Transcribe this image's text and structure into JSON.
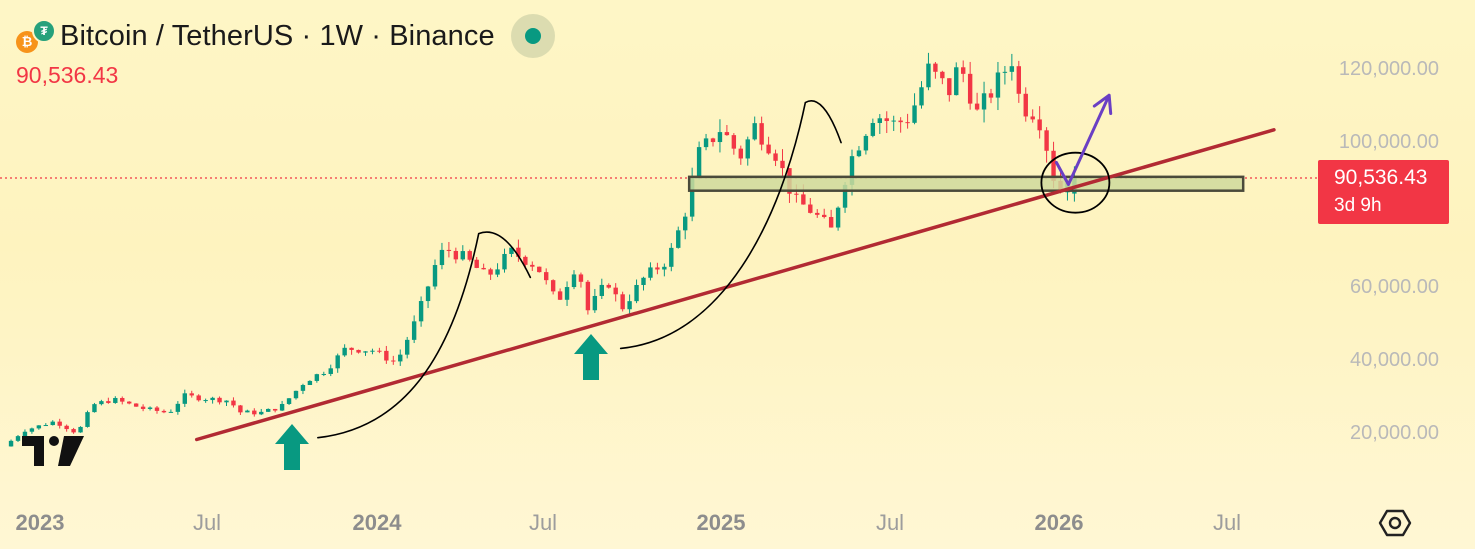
{
  "header": {
    "title": "Bitcoin / TetherUS · 1W · Binance",
    "base_coin_glyph": "₿",
    "quote_coin_glyph": "₮",
    "last_price": "90,536.43"
  },
  "price_tag": {
    "price": "90,536.43",
    "countdown": "3d 9h"
  },
  "colors": {
    "up": "#089981",
    "down": "#f23645",
    "trendline": "#b22a33",
    "support_box_fill": "#cfd99c",
    "projection_arrow": "#6a3fc4",
    "drawing": "#000000"
  },
  "icons": [
    "btc-coin-icon",
    "usdt-coin-icon",
    "status-dot-icon",
    "tradingview-logo-icon",
    "settings-icon",
    "up-arrow-icon"
  ],
  "chart_data": {
    "type": "candlestick",
    "timeframe": "1W",
    "y_axis": {
      "ticks": [
        "20,000.00",
        "40,000.00",
        "60,000.00",
        "80,000.00",
        "100,000.00",
        "120,000.00"
      ],
      "visible_range": [
        5000,
        130000
      ],
      "scale": "linear",
      "position": "right"
    },
    "x_axis": {
      "ticks": [
        {
          "label": "2023",
          "year": true
        },
        {
          "label": "Jul",
          "year": false
        },
        {
          "label": "2024",
          "year": true
        },
        {
          "label": "Jul",
          "year": false
        },
        {
          "label": "2025",
          "year": true
        },
        {
          "label": "Jul",
          "year": false
        },
        {
          "label": "2026",
          "year": true
        },
        {
          "label": "Jul",
          "year": false
        }
      ],
      "range": [
        "2022-12-19",
        "2026-12-01"
      ]
    },
    "grid": false,
    "legend": "none",
    "last_price": 90536.43,
    "close_path": [
      [
        "2022-12-26",
        16600
      ],
      [
        "2023-01-15",
        21000
      ],
      [
        "2023-02-15",
        23500
      ],
      [
        "2023-03-10",
        20200
      ],
      [
        "2023-03-25",
        28000
      ],
      [
        "2023-04-15",
        29500
      ],
      [
        "2023-05-15",
        27000
      ],
      [
        "2023-06-10",
        25800
      ],
      [
        "2023-06-25",
        30500
      ],
      [
        "2023-07-15",
        29800
      ],
      [
        "2023-08-10",
        29200
      ],
      [
        "2023-08-20",
        26000
      ],
      [
        "2023-09-10",
        25800
      ],
      [
        "2023-10-01",
        27500
      ],
      [
        "2023-10-25",
        34500
      ],
      [
        "2023-11-15",
        37500
      ],
      [
        "2023-12-05",
        43500
      ],
      [
        "2024-01-01",
        43000
      ],
      [
        "2024-01-25",
        39500
      ],
      [
        "2024-02-15",
        52000
      ],
      [
        "2024-03-05",
        67000
      ],
      [
        "2024-03-14",
        71000
      ],
      [
        "2024-04-05",
        68000
      ],
      [
        "2024-04-25",
        63000
      ],
      [
        "2024-05-20",
        70000
      ],
      [
        "2024-06-15",
        66000
      ],
      [
        "2024-07-05",
        56000
      ],
      [
        "2024-07-25",
        67000
      ],
      [
        "2024-08-05",
        54000
      ],
      [
        "2024-08-25",
        62000
      ],
      [
        "2024-09-08",
        54500
      ],
      [
        "2024-10-01",
        63000
      ],
      [
        "2024-10-25",
        68000
      ],
      [
        "2024-11-10",
        80000
      ],
      [
        "2024-11-25",
        97000
      ],
      [
        "2024-12-17",
        104000
      ],
      [
        "2025-01-05",
        96000
      ],
      [
        "2025-01-20",
        104500
      ],
      [
        "2025-02-10",
        97000
      ],
      [
        "2025-03-01",
        84000
      ],
      [
        "2025-03-15",
        82000
      ],
      [
        "2025-04-07",
        76000
      ],
      [
        "2025-04-25",
        94500
      ],
      [
        "2025-05-20",
        108000
      ],
      [
        "2025-06-10",
        105000
      ],
      [
        "2025-06-25",
        107000
      ],
      [
        "2025-07-14",
        120000
      ],
      [
        "2025-08-05",
        114000
      ],
      [
        "2025-08-14",
        122000
      ],
      [
        "2025-09-01",
        108000
      ],
      [
        "2025-09-20",
        116000
      ],
      [
        "2025-10-06",
        123000
      ],
      [
        "2025-10-15",
        110000
      ],
      [
        "2025-11-01",
        108000
      ],
      [
        "2025-11-15",
        94000
      ],
      [
        "2025-11-21",
        84000
      ],
      [
        "2025-11-28",
        90536
      ]
    ],
    "annotations": [
      {
        "type": "trendline",
        "from": [
          "2023-07-01",
          18500
        ],
        "to": [
          "2026-06-20",
          103500
        ]
      },
      {
        "type": "support_zone",
        "from_date": "2024-11-08",
        "to_date": "2026-05-20",
        "price_top": 90600,
        "price_bottom": 86800
      },
      {
        "type": "circle",
        "center": [
          "2025-12-02",
          89000
        ]
      },
      {
        "type": "projection_arrow",
        "from": [
          "2025-11-25",
          88500
        ],
        "to": [
          "2026-01-05",
          113000
        ]
      },
      {
        "type": "up_arrow",
        "at": [
          "2023-10-23",
          12500
        ]
      },
      {
        "type": "up_arrow",
        "at": [
          "2024-08-20",
          48500
        ]
      },
      {
        "type": "arc_pattern",
        "start": [
          "2023-10-31",
          19000
        ],
        "peak": [
          "2024-04-10",
          75000
        ],
        "end": [
          "2024-06-01",
          63000
        ]
      },
      {
        "type": "arc_pattern",
        "start": [
          "2024-08-31",
          43500
        ],
        "peak": [
          "2025-03-05",
          111000
        ],
        "end": [
          "2025-04-10",
          100000
        ]
      }
    ]
  }
}
